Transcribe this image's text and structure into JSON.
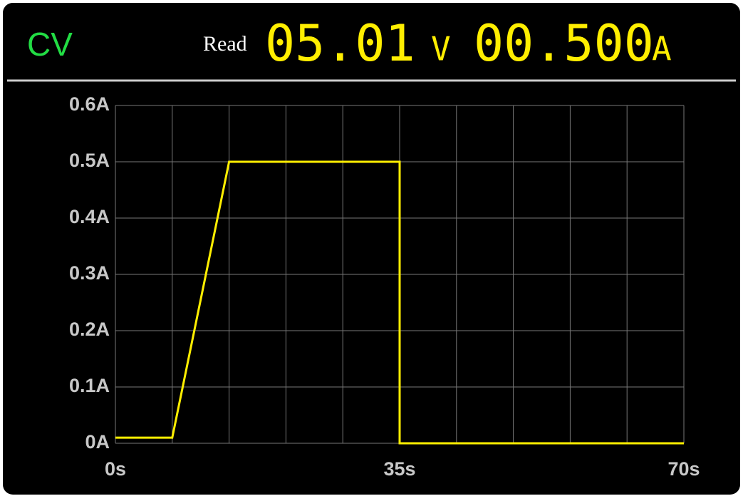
{
  "header": {
    "mode": "CV",
    "read_label": "Read",
    "voltage": "05.01",
    "voltage_unit": "V",
    "current": "00.500",
    "current_unit": "A"
  },
  "chart_data": {
    "type": "line",
    "x": [
      0,
      7,
      14,
      35,
      35,
      70
    ],
    "series": [
      {
        "color": "#ffee00",
        "values": [
          0.01,
          0.01,
          0.5,
          0.5,
          0,
          0
        ]
      }
    ],
    "xlim": [
      0,
      70
    ],
    "xticks": [
      {
        "value": 0,
        "label": "0s"
      },
      {
        "value": 7,
        "label": null
      },
      {
        "value": 14,
        "label": null
      },
      {
        "value": 21,
        "label": null
      },
      {
        "value": 28,
        "label": null
      },
      {
        "value": 35,
        "label": "35s"
      },
      {
        "value": 42,
        "label": null
      },
      {
        "value": 49,
        "label": null
      },
      {
        "value": 56,
        "label": null
      },
      {
        "value": 63,
        "label": null
      },
      {
        "value": 70,
        "label": "70s"
      }
    ],
    "ylim": [
      0,
      0.6
    ],
    "yticks": [
      {
        "value": 0,
        "label": "0A"
      },
      {
        "value": 0.1,
        "label": "0.1A"
      },
      {
        "value": 0.2,
        "label": "0.2A"
      },
      {
        "value": 0.3,
        "label": "0.3A"
      },
      {
        "value": 0.4,
        "label": "0.4A"
      },
      {
        "value": 0.5,
        "label": "0.5A"
      },
      {
        "value": 0.6,
        "label": "0.6A"
      }
    ],
    "grid": true
  }
}
